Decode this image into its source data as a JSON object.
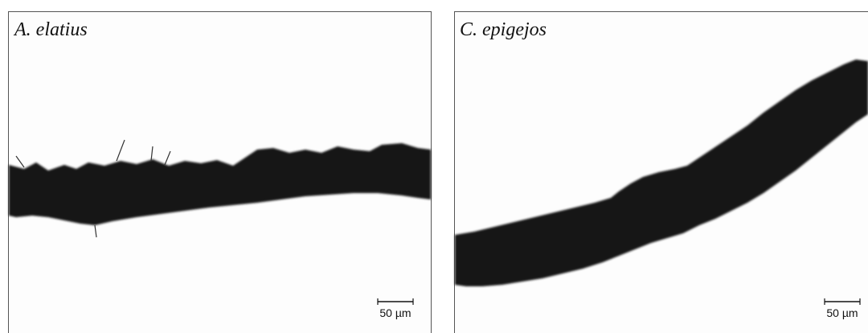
{
  "panels": [
    {
      "label": "A. elatius",
      "scale_bar": "50 µm"
    },
    {
      "label": "C. epigejos",
      "scale_bar": "50 µm"
    }
  ]
}
